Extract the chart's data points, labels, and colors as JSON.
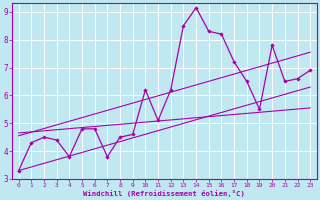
{
  "xlabel": "Windchill (Refroidissement éolien,°C)",
  "xlim": [
    -0.5,
    23.5
  ],
  "ylim": [
    3,
    9.3
  ],
  "xticks": [
    0,
    1,
    2,
    3,
    4,
    5,
    6,
    7,
    8,
    9,
    10,
    11,
    12,
    13,
    14,
    15,
    16,
    17,
    18,
    19,
    20,
    21,
    22,
    23
  ],
  "yticks": [
    3,
    4,
    5,
    6,
    7,
    8,
    9
  ],
  "bg_color": "#c0e8f0",
  "line_color": "#aa00aa",
  "grid_color": "#b0d8e8",
  "curve1_x": [
    0,
    1,
    2,
    3,
    4,
    5,
    6,
    7,
    8,
    9,
    10,
    11,
    12,
    13,
    14,
    15,
    16,
    17,
    18,
    19,
    20,
    21,
    22,
    23
  ],
  "curve1_y": [
    3.3,
    4.3,
    4.5,
    4.4,
    3.8,
    4.8,
    4.8,
    3.8,
    4.5,
    4.6,
    6.2,
    5.1,
    6.2,
    8.5,
    9.15,
    8.3,
    8.2,
    7.2,
    6.5,
    5.5,
    7.8,
    6.5,
    6.6,
    6.9
  ],
  "line1_x": [
    0,
    23
  ],
  "line1_y": [
    3.3,
    6.3
  ],
  "line2_x": [
    0,
    23
  ],
  "line2_y": [
    4.55,
    7.55
  ],
  "line3_x": [
    0,
    23
  ],
  "line3_y": [
    4.65,
    5.55
  ]
}
